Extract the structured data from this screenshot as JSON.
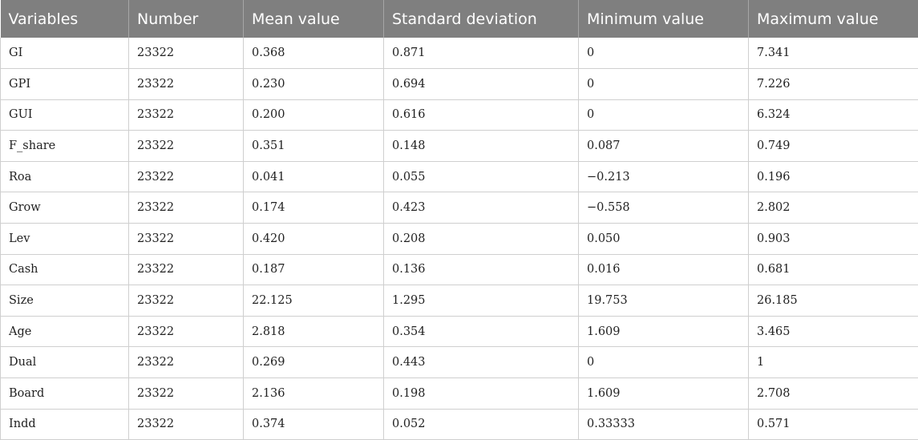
{
  "table": {
    "headers": [
      "Variables",
      "Number",
      "Mean value",
      "Standard deviation",
      "Minimum value",
      "Maximum value"
    ],
    "rows": [
      [
        "GI",
        "23322",
        "0.368",
        "0.871",
        "0",
        "7.341"
      ],
      [
        "GPI",
        "23322",
        "0.230",
        "0.694",
        "0",
        "7.226"
      ],
      [
        "GUI",
        "23322",
        "0.200",
        "0.616",
        "0",
        "6.324"
      ],
      [
        "F_share",
        "23322",
        "0.351",
        "0.148",
        "0.087",
        "0.749"
      ],
      [
        "Roa",
        "23322",
        "0.041",
        "0.055",
        "−0.213",
        "0.196"
      ],
      [
        "Grow",
        "23322",
        "0.174",
        "0.423",
        "−0.558",
        "2.802"
      ],
      [
        "Lev",
        "23322",
        "0.420",
        "0.208",
        "0.050",
        "0.903"
      ],
      [
        "Cash",
        "23322",
        "0.187",
        "0.136",
        "0.016",
        "0.681"
      ],
      [
        "Size",
        "23322",
        "22.125",
        "1.295",
        "19.753",
        "26.185"
      ],
      [
        "Age",
        "23322",
        "2.818",
        "0.354",
        "1.609",
        "3.465"
      ],
      [
        "Dual",
        "23322",
        "0.269",
        "0.443",
        "0",
        "1"
      ],
      [
        "Board",
        "23322",
        "2.136",
        "0.198",
        "1.609",
        "2.708"
      ],
      [
        "Indd",
        "23322",
        "0.374",
        "0.052",
        "0.33333",
        "0.571"
      ]
    ]
  },
  "colors": {
    "header_bg": "#7f7f7f",
    "header_text": "#ffffff",
    "grid_line": "#cfcfcf"
  }
}
